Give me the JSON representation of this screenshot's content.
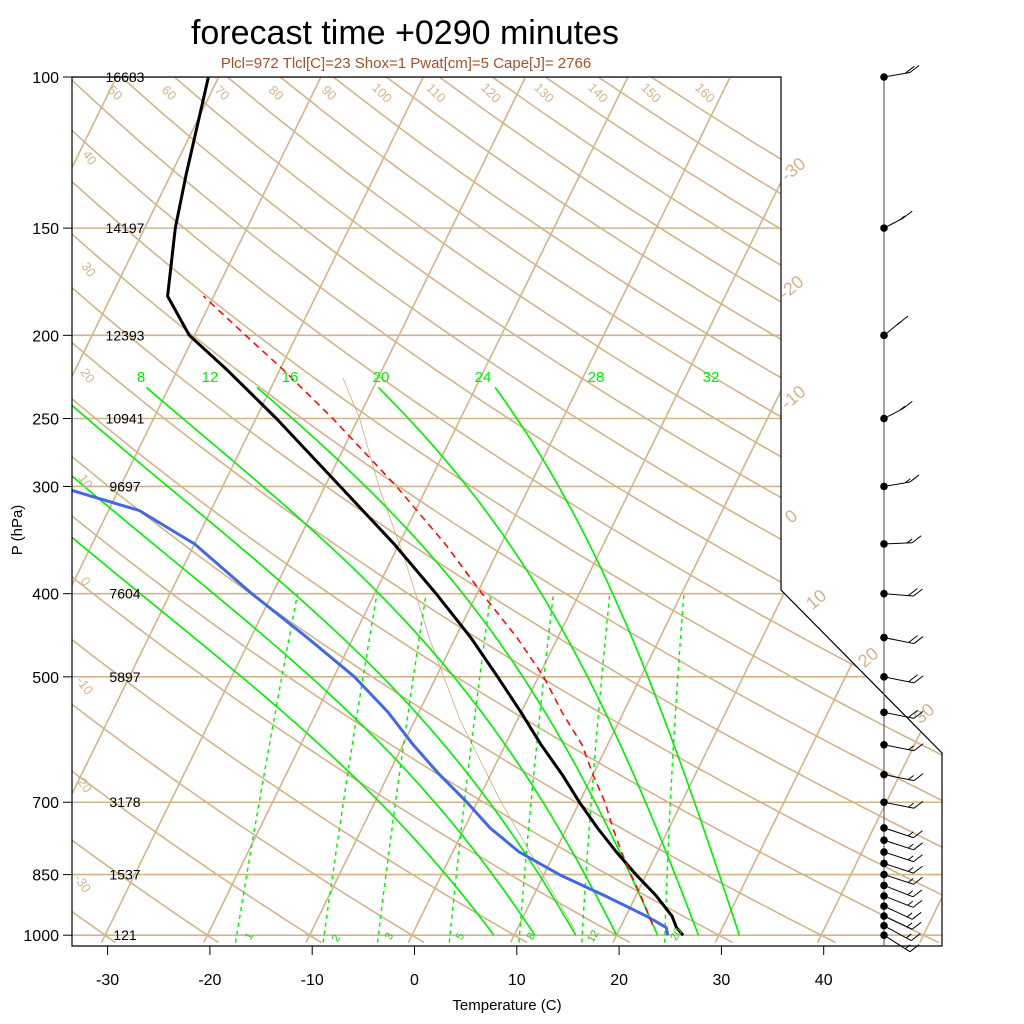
{
  "title": "forecast time +0290 minutes",
  "subtitle": "Plcl=972 Tlcl[C]=23 Shox=1 Pwat[cm]=5 Cape[J]= 2766",
  "colors": {
    "temperature": "#000000",
    "dewpoint": "#4169e1",
    "parcel": "#ff0000",
    "moist_adiabat": "#00ee00",
    "mixing_ratio": "#00ee00",
    "background_lines": "#d2b48c",
    "subtitle": "#a0522d"
  },
  "chart_data": {
    "type": "line",
    "title": "forecast time +0290 minutes",
    "subtitle": "Plcl=972 Tlcl[C]=23 Shox=1 Pwat[cm]=5 Cape[J]= 2766",
    "xlabel": "Temperature (C)",
    "ylabel": "P (hPa)",
    "xlim": [
      -34,
      46
    ],
    "ylim": [
      1020,
      100
    ],
    "y_scale": "log",
    "x_ticks": [
      -30,
      -20,
      -10,
      0,
      10,
      20,
      30,
      40
    ],
    "pressure_ticks": [
      100,
      150,
      200,
      250,
      300,
      400,
      500,
      700,
      850,
      1000
    ],
    "pressure_tick_labels": [
      "100",
      "150",
      "200",
      "250",
      "300",
      "400",
      "500",
      "700",
      "850",
      "1000"
    ],
    "heights": [
      {
        "p": 100,
        "label": "16683"
      },
      {
        "p": 150,
        "label": "14197"
      },
      {
        "p": 200,
        "label": "12393"
      },
      {
        "p": 250,
        "label": "10941"
      },
      {
        "p": 300,
        "label": "9697"
      },
      {
        "p": 400,
        "label": "7604"
      },
      {
        "p": 500,
        "label": "5897"
      },
      {
        "p": 700,
        "label": "3178"
      },
      {
        "p": 850,
        "label": "1537"
      },
      {
        "p": 1000,
        "label": "121"
      }
    ],
    "series": [
      {
        "key": "temperature",
        "points": [
          {
            "p": 1000,
            "t": 26.5
          },
          {
            "p": 980,
            "t": 25.5
          },
          {
            "p": 950,
            "t": 24.5
          },
          {
            "p": 900,
            "t": 22.0
          },
          {
            "p": 850,
            "t": 19.0
          },
          {
            "p": 800,
            "t": 16.0
          },
          {
            "p": 750,
            "t": 13.0
          },
          {
            "p": 700,
            "t": 10.0
          },
          {
            "p": 650,
            "t": 7.0
          },
          {
            "p": 600,
            "t": 3.5
          },
          {
            "p": 550,
            "t": 0.0
          },
          {
            "p": 500,
            "t": -4.0
          },
          {
            "p": 450,
            "t": -8.5
          },
          {
            "p": 400,
            "t": -14.0
          },
          {
            "p": 350,
            "t": -20.5
          },
          {
            "p": 300,
            "t": -28.5
          },
          {
            "p": 250,
            "t": -38.0
          },
          {
            "p": 220,
            "t": -45.0
          },
          {
            "p": 200,
            "t": -50.5
          },
          {
            "p": 180,
            "t": -54.5
          },
          {
            "p": 150,
            "t": -57.0
          },
          {
            "p": 130,
            "t": -58.5
          },
          {
            "p": 100,
            "t": -61.0
          }
        ]
      },
      {
        "key": "dewpoint",
        "points": [
          {
            "p": 1000,
            "t": 25.0
          },
          {
            "p": 980,
            "t": 24.5
          },
          {
            "p": 950,
            "t": 22.0
          },
          {
            "p": 900,
            "t": 17.0
          },
          {
            "p": 850,
            "t": 11.5
          },
          {
            "p": 800,
            "t": 6.5
          },
          {
            "p": 750,
            "t": 2.5
          },
          {
            "p": 700,
            "t": -1.0
          },
          {
            "p": 650,
            "t": -5.0
          },
          {
            "p": 600,
            "t": -9.0
          },
          {
            "p": 550,
            "t": -13.0
          },
          {
            "p": 500,
            "t": -18.0
          },
          {
            "p": 450,
            "t": -24.5
          },
          {
            "p": 400,
            "t": -32.0
          },
          {
            "p": 350,
            "t": -40.0
          },
          {
            "p": 320,
            "t": -47.0
          },
          {
            "p": 300,
            "t": -56.0
          },
          {
            "p": 285,
            "t": -66.0
          },
          {
            "p": 250,
            "t": -75.0
          },
          {
            "p": 230,
            "t": -80.0
          },
          {
            "p": 200,
            "t": -84.0
          },
          {
            "p": 180,
            "t": -89.0
          },
          {
            "p": 150,
            "t": -92.0
          },
          {
            "p": 130,
            "t": -95.0
          },
          {
            "p": 100,
            "t": -97.0
          }
        ]
      },
      {
        "key": "parcel",
        "points": [
          {
            "p": 972,
            "t": 23.0
          },
          {
            "p": 900,
            "t": 20.5
          },
          {
            "p": 850,
            "t": 18.5
          },
          {
            "p": 800,
            "t": 16.5
          },
          {
            "p": 750,
            "t": 14.5
          },
          {
            "p": 700,
            "t": 12.5
          },
          {
            "p": 650,
            "t": 10.0
          },
          {
            "p": 600,
            "t": 7.5
          },
          {
            "p": 550,
            "t": 4.0
          },
          {
            "p": 500,
            "t": 0.5
          },
          {
            "p": 450,
            "t": -4.0
          },
          {
            "p": 400,
            "t": -9.5
          },
          {
            "p": 350,
            "t": -15.5
          },
          {
            "p": 300,
            "t": -23.0
          },
          {
            "p": 250,
            "t": -32.5
          },
          {
            "p": 220,
            "t": -39.5
          },
          {
            "p": 200,
            "t": -45.0
          },
          {
            "p": 180,
            "t": -51.0
          }
        ]
      }
    ],
    "moist_adiabat_labels": [
      "8",
      "12",
      "16",
      "20",
      "24",
      "28",
      "32"
    ],
    "mixing_ratio_labels": [
      "1",
      "2",
      "3",
      "5",
      "8",
      "12",
      "20"
    ],
    "isotherm_labels": [
      "-30",
      "-20",
      "-10",
      "0",
      "10",
      "20",
      "30"
    ],
    "dry_adiabat_labels": [
      "50",
      "60",
      "70",
      "80",
      "90",
      "100",
      "110",
      "120",
      "130",
      "140",
      "150",
      "160"
    ],
    "theta_left_labels": [
      "40",
      "30",
      "20",
      "10",
      "0",
      "-10",
      "-20",
      "-30"
    ],
    "wind_barbs": [
      {
        "p": 1000,
        "direction": 240,
        "speed": 15
      },
      {
        "p": 975,
        "direction": 245,
        "speed": 15
      },
      {
        "p": 950,
        "direction": 250,
        "speed": 15
      },
      {
        "p": 925,
        "direction": 250,
        "speed": 15
      },
      {
        "p": 900,
        "direction": 255,
        "speed": 15
      },
      {
        "p": 875,
        "direction": 255,
        "speed": 15
      },
      {
        "p": 850,
        "direction": 260,
        "speed": 15
      },
      {
        "p": 825,
        "direction": 260,
        "speed": 15
      },
      {
        "p": 800,
        "direction": 260,
        "speed": 15
      },
      {
        "p": 775,
        "direction": 260,
        "speed": 15
      },
      {
        "p": 750,
        "direction": 260,
        "speed": 15
      },
      {
        "p": 700,
        "direction": 270,
        "speed": 15
      },
      {
        "p": 650,
        "direction": 270,
        "speed": 15
      },
      {
        "p": 600,
        "direction": 270,
        "speed": 15
      },
      {
        "p": 550,
        "direction": 270,
        "speed": 20
      },
      {
        "p": 500,
        "direction": 270,
        "speed": 20
      },
      {
        "p": 450,
        "direction": 270,
        "speed": 20
      },
      {
        "p": 400,
        "direction": 280,
        "speed": 20
      },
      {
        "p": 350,
        "direction": 290,
        "speed": 15
      },
      {
        "p": 300,
        "direction": 300,
        "speed": 15
      },
      {
        "p": 250,
        "direction": 320,
        "speed": 15
      },
      {
        "p": 200,
        "direction": 330,
        "speed": 15
      },
      {
        "p": 150,
        "direction": 320,
        "speed": 15
      },
      {
        "p": 100,
        "direction": 300,
        "speed": 20
      }
    ]
  }
}
